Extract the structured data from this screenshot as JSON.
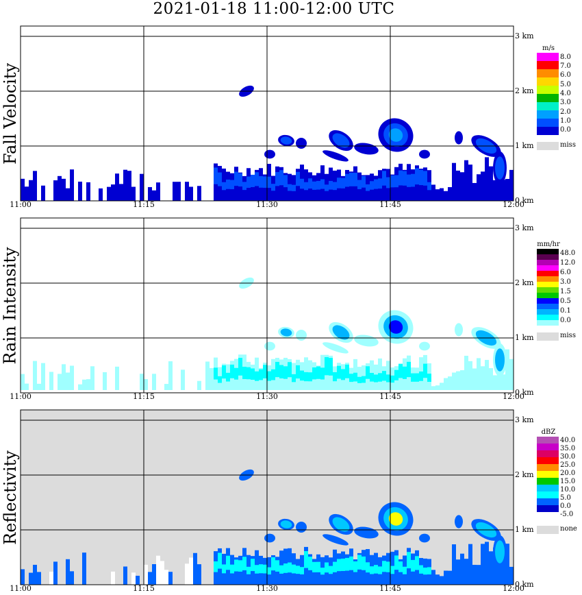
{
  "title": "2021-01-18   11:00-12:00 UTC",
  "x_ticks": [
    "11:00",
    "11:15",
    "11:30",
    "11:45",
    "12:00"
  ],
  "y_ticks": [
    "0 km",
    "1 km",
    "2 km",
    "3 km"
  ],
  "colors": {
    "missing": "#dcdcdc",
    "grid": "#000000"
  },
  "panels": [
    {
      "title": "Fall Velocity",
      "unit": "m/s",
      "background": "#ffffff",
      "scale_labels": [
        "8.0",
        "7.0",
        "6.0",
        "5.0",
        "4.0",
        "3.0",
        "2.0",
        "1.0",
        "0.0"
      ],
      "scale_colors": [
        "#ff00ff",
        "#ff0000",
        "#ff8c00",
        "#ffd700",
        "#c8ff00",
        "#00b400",
        "#00f0c8",
        "#00a0ff",
        "#0050ff",
        "#0000d2"
      ],
      "missing_label": "miss"
    },
    {
      "title": "Rain Intensity",
      "unit": "mm/hr",
      "background": "#ffffff",
      "scale_labels": [
        "48.0",
        "12.0",
        "6.0",
        "3.0",
        "1.5",
        "0.5",
        "0.1",
        "0.0"
      ],
      "scale_colors": [
        "#000000",
        "#5a0050",
        "#b400b4",
        "#ff00ff",
        "#ff0000",
        "#ff8c00",
        "#ffff00",
        "#64dc00",
        "#00c800",
        "#0000ff",
        "#0064ff",
        "#00b4ff",
        "#00ffff",
        "#a0ffff"
      ],
      "missing_label": "miss"
    },
    {
      "title": "Reflectivity",
      "unit": "dBZ",
      "background": "#dcdcdc",
      "scale_labels": [
        "40.0",
        "35.0",
        "30.0",
        "25.0",
        "20.0",
        "15.0",
        "10.0",
        "5.0",
        "0.0",
        "-5.0"
      ],
      "scale_colors": [
        "#b450b4",
        "#c800c8",
        "#dc0064",
        "#ff0000",
        "#ff8c00",
        "#ffff00",
        "#00c800",
        "#00c8ff",
        "#00ffff",
        "#0064ff",
        "#0000c8",
        "#ffffff"
      ],
      "missing_label": "none"
    }
  ],
  "chart_data": {
    "type": "heatmap",
    "title": "2021-01-18   11:00-12:00 UTC",
    "x_range": [
      "11:00",
      "12:00"
    ],
    "y_range_km": [
      0,
      3.2
    ],
    "grid": true,
    "panels": [
      {
        "name": "Fall Velocity",
        "unit": "m/s",
        "precip_layer_top_km": 0.7,
        "elevated_echoes_km": [
          0.8,
          1.5
        ]
      },
      {
        "name": "Rain Intensity",
        "unit": "mm/hr",
        "precip_layer_top_km": 0.7,
        "elevated_echoes_km": [
          0.8,
          1.5
        ]
      },
      {
        "name": "Reflectivity",
        "unit": "dBZ",
        "precip_layer_top_km": 0.7,
        "elevated_echoes_km": [
          0.8,
          1.5
        ]
      }
    ]
  }
}
